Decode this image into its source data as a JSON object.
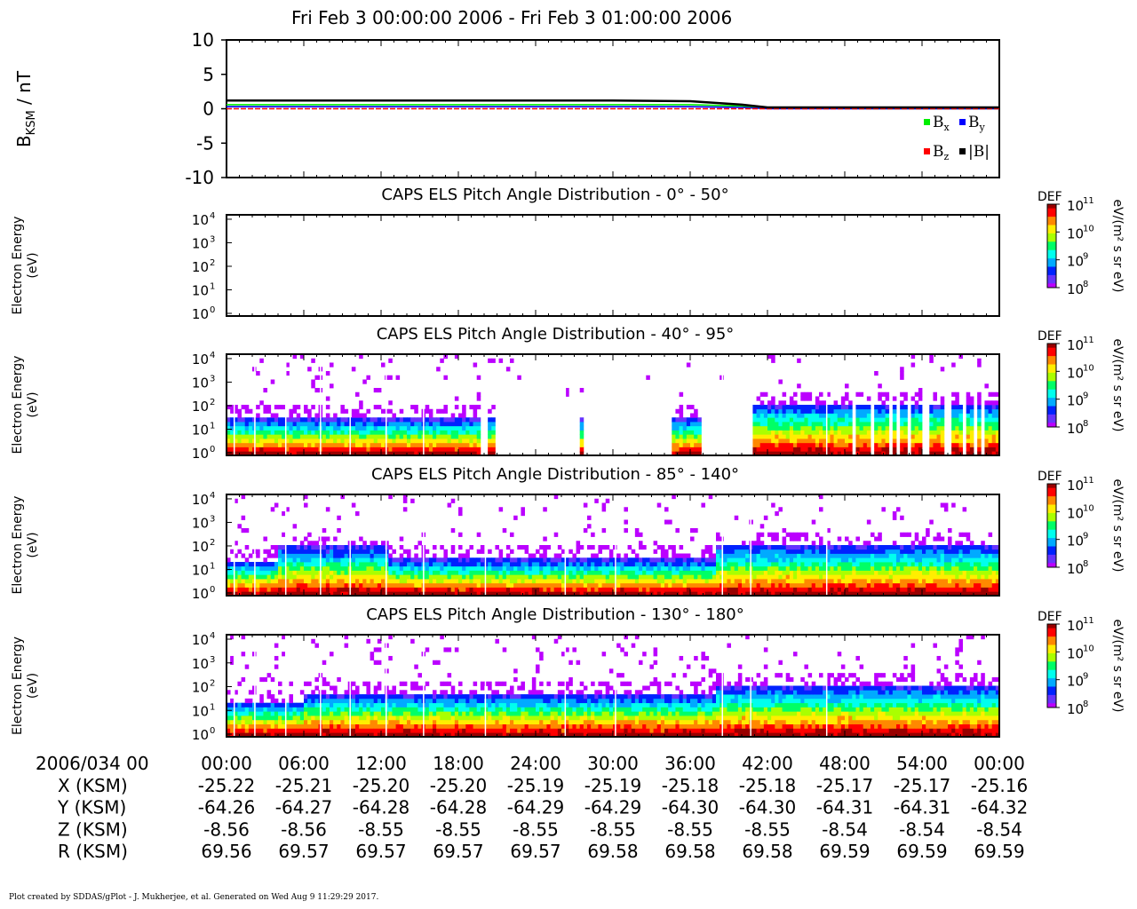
{
  "main_title": "Fri Feb 3 00:00:00 2006 - Fri Feb 3 01:00:00 2006",
  "footer": "Plot created by SDDAS/gPlot - J. Mukherjee, et al.  Generated on Wed Aug 9 11:29:29 2017.",
  "colors": {
    "bx": "#00ee00",
    "by": "#0000ff",
    "bz": "#ff0000",
    "bmag": "#000000",
    "colorbar": [
      "#ffffff",
      "#bb00ff",
      "#6633ff",
      "#0022ff",
      "#00aaff",
      "#00ffee",
      "#00ff66",
      "#aaff00",
      "#ffee00",
      "#ff8800",
      "#ff0000",
      "#990000"
    ]
  },
  "chart_data": [
    {
      "type": "line",
      "id": "magnetometer",
      "ylabel_main": "B",
      "ylabel_sub": "KSM",
      "ylabel_unit": " / nT",
      "ylim": [
        -10,
        10
      ],
      "yticks": [
        "10",
        "5",
        "0",
        "-5",
        "-10"
      ],
      "legend": [
        {
          "main": "B",
          "sub": "x",
          "color": "#00ee00"
        },
        {
          "main": "B",
          "sub": "y",
          "color": "#0000ff"
        },
        {
          "main": "B",
          "sub": "z",
          "color": "#ff0000"
        },
        {
          "main": "|B|",
          "sub": "",
          "color": "#000000"
        }
      ],
      "legend_placement": "bottom-right",
      "x_minutes": [
        0,
        10,
        20,
        30,
        36,
        40,
        42,
        50,
        60
      ],
      "series": [
        {
          "name": "Bx",
          "values": [
            0.6,
            0.6,
            0.6,
            0.6,
            0.6,
            0.4,
            0.1,
            0.0,
            0.0
          ]
        },
        {
          "name": "By",
          "values": [
            0.3,
            0.3,
            0.3,
            0.3,
            0.3,
            0.2,
            0.0,
            0.0,
            0.0
          ]
        },
        {
          "name": "Bz",
          "values": [
            0.0,
            0.0,
            0.0,
            0.0,
            0.0,
            0.0,
            0.0,
            0.0,
            0.0
          ]
        },
        {
          "name": "|B|",
          "values": [
            1.2,
            1.2,
            1.2,
            1.2,
            1.1,
            0.6,
            0.2,
            0.2,
            0.2
          ]
        }
      ]
    },
    {
      "type": "heatmap",
      "id": "pa1",
      "title": "CAPS ELS Pitch Angle Distribution - 0° - 50°",
      "ylabel": "Electron Energy",
      "yunit": "(eV)",
      "yticks": [
        "10",
        "10",
        "10",
        "10",
        "10"
      ],
      "ytick_exp": [
        "4",
        "3",
        "2",
        "1",
        "0"
      ],
      "colorbar_label": "DEF",
      "colorbar_unit": "eV/(m² s sr eV)",
      "colorbar_ticks": [
        "10",
        "10",
        "10",
        "10"
      ],
      "colorbar_exp": [
        "11",
        "10",
        "9",
        "8"
      ],
      "pattern": "empty"
    },
    {
      "type": "heatmap",
      "id": "pa2",
      "title": "CAPS ELS Pitch Angle Distribution - 40° - 95°",
      "ylabel": "Electron Energy",
      "yunit": "(eV)",
      "yticks": [
        "10",
        "10",
        "10",
        "10",
        "10"
      ],
      "ytick_exp": [
        "4",
        "3",
        "2",
        "1",
        "0"
      ],
      "colorbar_label": "DEF",
      "colorbar_unit": "eV/(m² s sr eV)",
      "colorbar_ticks": [
        "10",
        "10",
        "10",
        "10"
      ],
      "colorbar_exp": [
        "11",
        "10",
        "9",
        "8"
      ],
      "pattern": "gappy"
    },
    {
      "type": "heatmap",
      "id": "pa3",
      "title": "CAPS ELS Pitch Angle Distribution - 85° - 140°",
      "ylabel": "Electron Energy",
      "yunit": "(eV)",
      "yticks": [
        "10",
        "10",
        "10",
        "10",
        "10"
      ],
      "ytick_exp": [
        "4",
        "3",
        "2",
        "1",
        "0"
      ],
      "colorbar_label": "DEF",
      "colorbar_unit": "eV/(m² s sr eV)",
      "colorbar_ticks": [
        "10",
        "10",
        "10",
        "10"
      ],
      "colorbar_exp": [
        "11",
        "10",
        "9",
        "8"
      ],
      "pattern": "full"
    },
    {
      "type": "heatmap",
      "id": "pa4",
      "title": "CAPS ELS Pitch Angle Distribution - 130° - 180°",
      "ylabel": "Electron Energy",
      "yunit": "(eV)",
      "yticks": [
        "10",
        "10",
        "10",
        "10",
        "10"
      ],
      "ytick_exp": [
        "4",
        "3",
        "2",
        "1",
        "0"
      ],
      "colorbar_label": "DEF",
      "colorbar_unit": "eV/(m² s sr eV)",
      "colorbar_ticks": [
        "10",
        "10",
        "10",
        "10"
      ],
      "colorbar_exp": [
        "11",
        "10",
        "9",
        "8"
      ],
      "pattern": "full2"
    }
  ],
  "ephemeris": {
    "date_label": "2006/034 00",
    "times": [
      "00:00",
      "06:00",
      "12:00",
      "18:00",
      "24:00",
      "30:00",
      "36:00",
      "42:00",
      "48:00",
      "54:00",
      "00:00"
    ],
    "rows": [
      {
        "label": "X (KSM)",
        "values": [
          "-25.22",
          "-25.21",
          "-25.20",
          "-25.20",
          "-25.19",
          "-25.19",
          "-25.18",
          "-25.18",
          "-25.17",
          "-25.17",
          "-25.16"
        ]
      },
      {
        "label": "Y (KSM)",
        "values": [
          "-64.26",
          "-64.27",
          "-64.28",
          "-64.28",
          "-64.29",
          "-64.29",
          "-64.30",
          "-64.30",
          "-64.31",
          "-64.31",
          "-64.32"
        ]
      },
      {
        "label": "Z (KSM)",
        "values": [
          "-8.56",
          "-8.56",
          "-8.55",
          "-8.55",
          "-8.55",
          "-8.55",
          "-8.55",
          "-8.55",
          "-8.54",
          "-8.54",
          "-8.54"
        ]
      },
      {
        "label": "R (KSM)",
        "values": [
          "69.56",
          "69.57",
          "69.57",
          "69.57",
          "69.57",
          "69.58",
          "69.58",
          "69.58",
          "69.59",
          "69.59",
          "69.59"
        ]
      }
    ]
  }
}
